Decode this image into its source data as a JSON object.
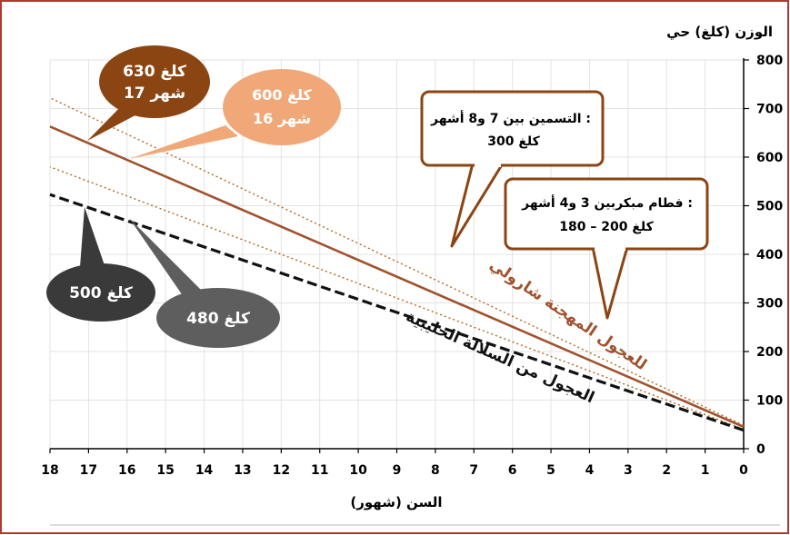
{
  "chart_data": {
    "type": "line",
    "ylabel": "الوزن (كلغ) حي",
    "xlabel": "السن (شهور)",
    "xlim": [
      0,
      18
    ],
    "ylim": [
      0,
      800
    ],
    "x_reversed": true,
    "y_axis_side": "right",
    "grid": true,
    "x_ticks": [
      0,
      1,
      2,
      3,
      4,
      5,
      6,
      7,
      8,
      9,
      10,
      11,
      12,
      13,
      14,
      15,
      16,
      17,
      18
    ],
    "y_ticks": [
      0,
      100,
      200,
      300,
      400,
      500,
      600,
      700,
      800
    ],
    "series": [
      {
        "name": "للعجول المهجنة شارولي",
        "x": [
          0,
          18
        ],
        "y": [
          45,
          663
        ],
        "color": "#a0522d",
        "style": "solid"
      },
      {
        "name": "العجول من السلالة الحليبية",
        "x": [
          0,
          18
        ],
        "y": [
          38,
          523
        ],
        "color": "#111111",
        "style": "dashed"
      },
      {
        "name": "",
        "x": [
          0,
          18
        ],
        "y": [
          48,
          722
        ],
        "color": "#b5651d",
        "style": "dotted"
      },
      {
        "name": "",
        "x": [
          0,
          18
        ],
        "y": [
          40,
          580
        ],
        "color": "#b5651d",
        "style": "dotted"
      }
    ],
    "callouts": [
      {
        "lines": [
          "630 كلغ",
          "17 شهر"
        ],
        "fill": "#8b4513",
        "text_color": "#ffffff"
      },
      {
        "lines": [
          "600 كلغ",
          "16 شهر"
        ],
        "fill": "#f0a878",
        "text_color": "#ffffff"
      },
      {
        "lines": [
          "500 كلغ"
        ],
        "fill": "#3a3a3a",
        "text_color": "#ffffff"
      },
      {
        "lines": [
          "480 كلغ"
        ],
        "fill": "#5e5e5e",
        "text_color": "#ffffff"
      },
      {
        "lines": [
          "التسمين بين 7 و8 أشهر :",
          "300 كلغ"
        ],
        "fill": "#ffffff",
        "border": "#8b4513",
        "text_color": "#000000"
      },
      {
        "lines": [
          "فطام مبكربين 3 و4 أشهر :",
          "180 – 200 كلغ"
        ],
        "fill": "#ffffff",
        "border": "#8b4513",
        "text_color": "#000000"
      }
    ]
  }
}
